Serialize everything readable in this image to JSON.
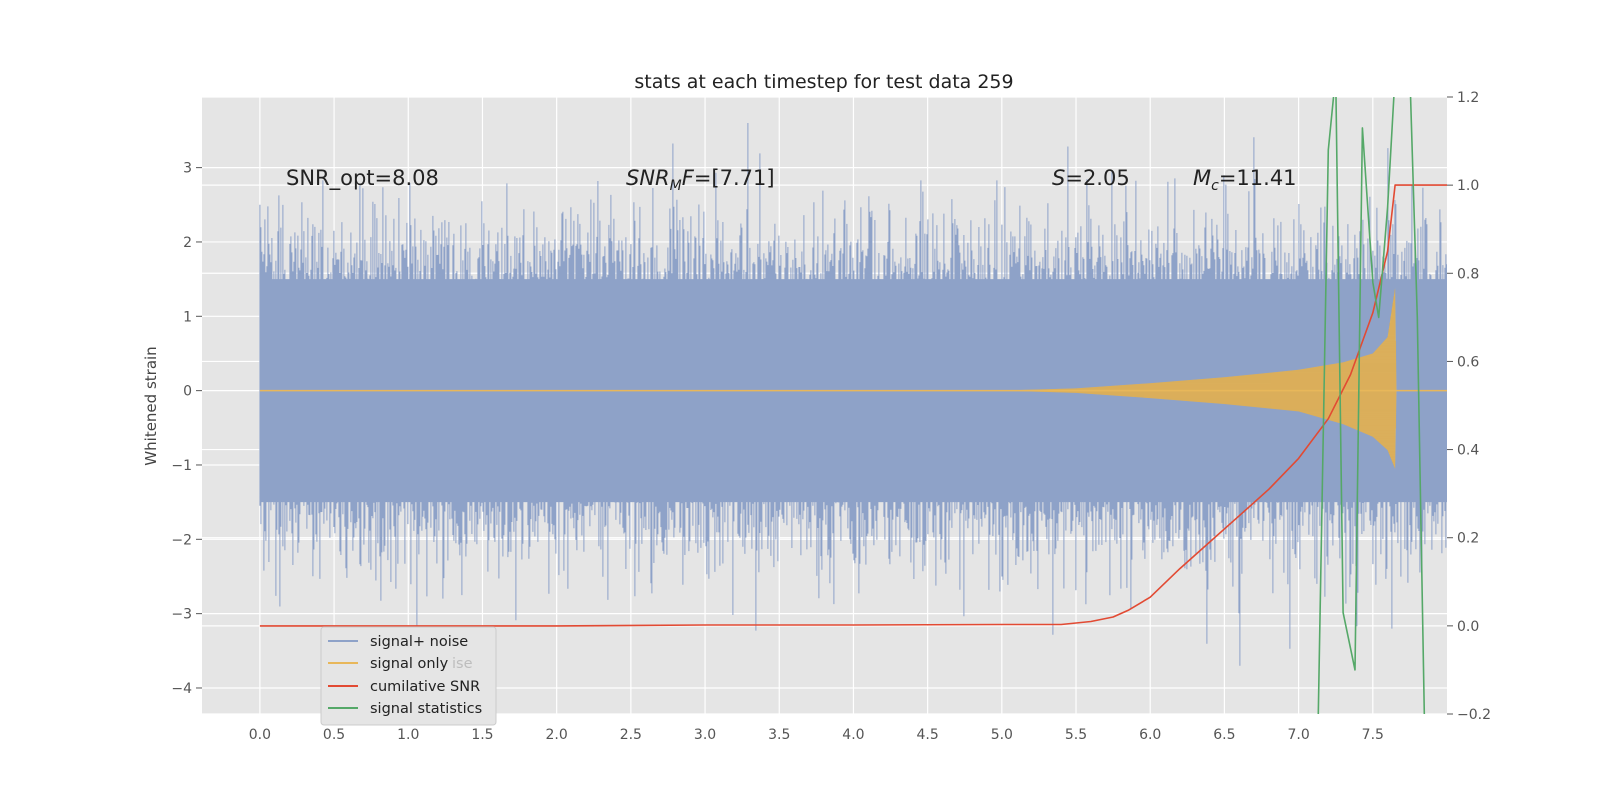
{
  "chart_data": {
    "type": "line",
    "title": "stats at each timestep for test data 259",
    "ylabel": "Whitened strain",
    "x_ticks": [
      "0.0",
      "0.5",
      "1.0",
      "1.5",
      "2.0",
      "2.5",
      "3.0",
      "3.5",
      "4.0",
      "4.5",
      "5.0",
      "5.5",
      "6.0",
      "6.5",
      "7.0",
      "7.5"
    ],
    "y_ticks": [
      "3",
      "2",
      "1",
      "0",
      "−1",
      "−2",
      "−3",
      "−4"
    ],
    "y2_ticks": [
      "1.2",
      "1.0",
      "0.8",
      "0.6",
      "0.4",
      "0.2",
      "0.0",
      "−0.2"
    ],
    "xlim": [
      -0.39,
      8.0
    ],
    "ylim": [
      -4.35,
      3.95
    ],
    "y2lim": [
      -0.2,
      1.2
    ],
    "annotations": {
      "snr_opt": "SNR_opt=8.08",
      "snr_mf_base": "SNR",
      "snr_mf_sub": "M",
      "snr_mf_rest": "F=[7.71]",
      "s_sym": "S",
      "s_val": "=2.05",
      "mc_base": "M",
      "mc_sub": "c",
      "mc_val": "=11.41"
    },
    "legend": [
      {
        "label": "signal+ noise",
        "color": "#8ea2c8"
      },
      {
        "label": "signal only",
        "color": "#e8b75a"
      },
      {
        "label": "cumilative SNR",
        "color": "#e24a33"
      },
      {
        "label": "signal statistics",
        "color": "#55a868"
      }
    ],
    "legend_ghost": "ise",
    "series": [
      {
        "name": "signal+ noise",
        "axis": "left",
        "render": "noise_envelope",
        "x_range": [
          0.0,
          8.0
        ],
        "typical_amplitude": 2.0,
        "peak_max": 3.6,
        "peak_min": -3.7,
        "color": "#8ea2c8"
      },
      {
        "name": "signal only",
        "axis": "left",
        "render": "chirp",
        "x": [
          0.0,
          5.0,
          5.5,
          6.0,
          6.5,
          7.0,
          7.3,
          7.5,
          7.6,
          7.65,
          7.66,
          8.0
        ],
        "upper": [
          0.0,
          0.0,
          0.03,
          0.1,
          0.18,
          0.28,
          0.38,
          0.5,
          0.72,
          1.38,
          0.0,
          0.0
        ],
        "lower": [
          0.0,
          0.0,
          -0.03,
          -0.1,
          -0.18,
          -0.28,
          -0.45,
          -0.62,
          -0.8,
          -1.05,
          0.0,
          0.0
        ],
        "color": "#e8b75a"
      },
      {
        "name": "cumilative SNR",
        "axis": "right",
        "x": [
          0.0,
          1.0,
          2.0,
          3.0,
          4.0,
          5.0,
          5.4,
          5.6,
          5.75,
          5.85,
          6.0,
          6.2,
          6.4,
          6.6,
          6.8,
          7.0,
          7.2,
          7.35,
          7.5,
          7.6,
          7.65,
          7.66,
          8.0
        ],
        "values": [
          0.0,
          0.0,
          0.0,
          0.002,
          0.002,
          0.003,
          0.003,
          0.01,
          0.02,
          0.035,
          0.065,
          0.13,
          0.19,
          0.25,
          0.31,
          0.38,
          0.47,
          0.57,
          0.71,
          0.85,
          1.0,
          1.0,
          1.0
        ],
        "color": "#e24a33"
      },
      {
        "name": "signal statistics",
        "axis": "right",
        "x": [
          7.13,
          7.2,
          7.25,
          7.3,
          7.38,
          7.43,
          7.5,
          7.54,
          7.6,
          7.65,
          7.7,
          7.75,
          7.8,
          7.85
        ],
        "values": [
          -0.25,
          1.08,
          1.25,
          0.03,
          -0.1,
          1.13,
          0.78,
          0.7,
          0.95,
          1.25,
          1.3,
          1.25,
          0.7,
          -0.25
        ],
        "color": "#55a868"
      }
    ]
  }
}
